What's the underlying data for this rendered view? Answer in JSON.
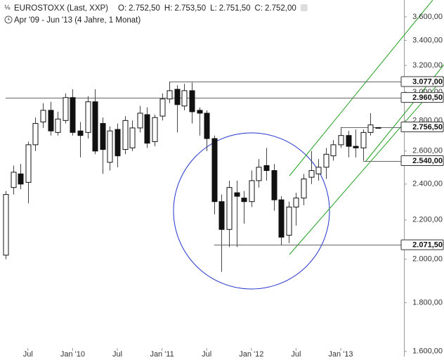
{
  "chart_data": {
    "type": "candlestick",
    "title": "EUROSTOXX (Last, XXP)",
    "quote": [
      {
        "label": "O:",
        "text": "2.752,50"
      },
      {
        "label": "H:",
        "text": "2.753,50"
      },
      {
        "label": "L:",
        "text": "2.751,50"
      },
      {
        "label": "C:",
        "text": "2.752,00"
      }
    ],
    "subtitle": "Apr '09 - Jun '13 (4 Jahre, 1 Monat)",
    "categories": [
      null,
      null,
      null,
      "Jul",
      null,
      null,
      null,
      null,
      null,
      "Jan '10",
      null,
      null,
      null,
      null,
      null,
      "Jul",
      null,
      null,
      null,
      null,
      null,
      "Jan '11",
      null,
      null,
      null,
      null,
      null,
      "Jul",
      null,
      null,
      null,
      null,
      null,
      "Jan '12",
      null,
      null,
      null,
      null,
      null,
      "Jul",
      null,
      null,
      null,
      null,
      null,
      "Jan '13",
      null,
      null,
      null,
      null,
      null
    ],
    "open": [
      2020,
      2380,
      2460,
      2410,
      2640,
      2790,
      2870,
      2720,
      2800,
      2960,
      2730,
      2720,
      2930,
      2780,
      2530,
      2740,
      2610,
      2620,
      2750,
      2840,
      2660,
      2830,
      2950,
      3020,
      2900,
      3010,
      2870,
      2850,
      2680,
      2300,
      2150,
      2350,
      2320,
      2300,
      2420,
      2510,
      2480,
      2310,
      2120,
      2270,
      2320,
      2440,
      2460,
      2500,
      2570,
      2640,
      2700,
      2630,
      2620,
      2720,
      2752.5
    ],
    "high": [
      2360,
      2510,
      2520,
      2660,
      2820,
      2920,
      2930,
      2860,
      2990,
      3020,
      2790,
      2970,
      3020,
      2820,
      2760,
      2780,
      2830,
      2800,
      2900,
      2890,
      2840,
      2990,
      3077,
      3050,
      3060,
      3070,
      2890,
      2870,
      2700,
      2340,
      2420,
      2420,
      2360,
      2480,
      2550,
      2620,
      2520,
      2330,
      2300,
      2350,
      2460,
      2600,
      2550,
      2620,
      2670,
      2756,
      2730,
      2740,
      2740,
      2850,
      2753.5
    ],
    "low": [
      2000,
      2340,
      2370,
      2290,
      2600,
      2750,
      2700,
      2700,
      2780,
      2700,
      2560,
      2680,
      2580,
      2460,
      2480,
      2500,
      2580,
      2600,
      2720,
      2620,
      2630,
      2800,
      2920,
      2720,
      2870,
      2780,
      2700,
      2600,
      2230,
      1940,
      2060,
      2060,
      2180,
      2270,
      2380,
      2420,
      2250,
      2070,
      2080,
      2170,
      2280,
      2400,
      2420,
      2430,
      2540,
      2620,
      2560,
      2560,
      2540,
      2700,
      2751.5
    ],
    "close": [
      2340,
      2470,
      2400,
      2640,
      2780,
      2870,
      2730,
      2810,
      2960,
      2720,
      2700,
      2930,
      2600,
      2610,
      2730,
      2570,
      2800,
      2750,
      2850,
      2650,
      2820,
      2950,
      3010,
      2910,
      3010,
      2860,
      2850,
      2680,
      2300,
      2150,
      2380,
      2330,
      2300,
      2420,
      2500,
      2480,
      2310,
      2110,
      2270,
      2320,
      2430,
      2480,
      2500,
      2580,
      2640,
      2700,
      2630,
      2620,
      2720,
      2770,
      2752
    ],
    "up_color": "#ffffff",
    "down_color": "#111111",
    "log_scale": true,
    "ylim": [
      1580,
      3750
    ],
    "yticks": [
      {
        "value": 1600,
        "label": "1.600,00"
      },
      {
        "value": 1800,
        "label": "1.800,00"
      },
      {
        "value": 2000,
        "label": "2.000,00"
      },
      {
        "value": 2200,
        "label": "2.200,00"
      },
      {
        "value": 2400,
        "label": "2.400,00"
      },
      {
        "value": 2600,
        "label": "2.600,00"
      },
      {
        "value": 2800,
        "label": "2.800,00"
      },
      {
        "value": 3000,
        "label": "3.000,00"
      },
      {
        "value": 3200,
        "label": "3.200,00"
      },
      {
        "value": 3400,
        "label": "3.400,00"
      },
      {
        "value": 3600,
        "label": "3.600,00"
      }
    ],
    "levels": [
      {
        "value": 3077,
        "label": "3.077,00"
      },
      {
        "value": 2960.5,
        "label": "2.960,50"
      },
      {
        "value": 2756.5,
        "label": "2.756,50"
      },
      {
        "value": 2540,
        "label": "2.540,00"
      },
      {
        "value": 2071.5,
        "label": "2.071,50"
      }
    ]
  }
}
